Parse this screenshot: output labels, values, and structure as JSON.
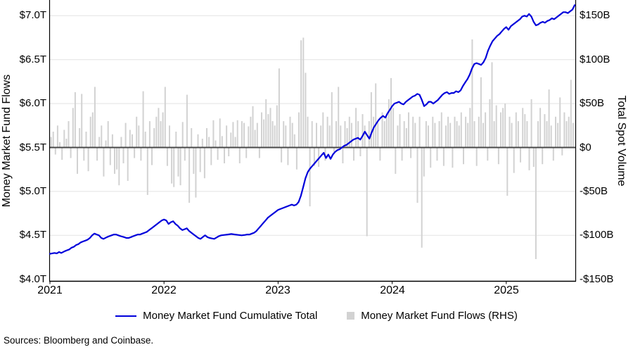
{
  "figure": {
    "left_axis_title": "Money Market Fund Flows",
    "right_axis_title": "Total Spot Volume",
    "legend_line_label": "Money Market Fund Cumulative Total",
    "legend_bar_label": "Money Market Fund Flows (RHS)",
    "sources_note": "Sources: Bloomberg and Coinbase.",
    "colors": {
      "line": "#0000db",
      "bars": "#d2d2d2",
      "zero_line": "#4a4a4a",
      "grid": "#e3e3e3",
      "axis": "#000000"
    }
  },
  "chart_data": {
    "type": "composite",
    "subtypes": [
      "line",
      "bar"
    ],
    "x_axis": {
      "ticks": [
        "2021",
        "2022",
        "2023",
        "2024",
        "2025"
      ],
      "tick_values": [
        2021,
        2022,
        2023,
        2024,
        2025
      ],
      "range": [
        2021.0,
        2025.603
      ],
      "grid": false
    },
    "left_axis": {
      "title": "Money Market Fund Flows",
      "unit": "$T",
      "ticks": [
        "$4.0T",
        "$4.5T",
        "$5.0T",
        "$5.5T",
        "$6.0T",
        "$6.5T",
        "$7.0T"
      ],
      "tick_values": [
        4.0,
        4.5,
        5.0,
        5.5,
        6.0,
        6.5,
        7.0
      ],
      "range": [
        4.0,
        7.2
      ],
      "grid": true
    },
    "right_axis": {
      "title": "Total Spot Volume",
      "unit": "$B",
      "ticks": [
        "-$150B",
        "-$100B",
        "-$50B",
        "$0",
        "$50B",
        "$100B",
        "$150B"
      ],
      "tick_values": [
        -150,
        -100,
        -50,
        0,
        50,
        100,
        150
      ],
      "range": [
        -152,
        152
      ],
      "grid": false
    },
    "series": [
      {
        "name": "Money Market Fund Cumulative Total",
        "type": "line",
        "axis": "left",
        "unit": "$T",
        "color": "#0000db",
        "points": [
          [
            2021.0,
            4.29
          ],
          [
            2021.02,
            4.295
          ],
          [
            2021.04,
            4.3
          ],
          [
            2021.06,
            4.295
          ],
          [
            2021.08,
            4.31
          ],
          [
            2021.1,
            4.3
          ],
          [
            2021.13,
            4.32
          ],
          [
            2021.15,
            4.33
          ],
          [
            2021.17,
            4.34
          ],
          [
            2021.19,
            4.36
          ],
          [
            2021.21,
            4.37
          ],
          [
            2021.23,
            4.39
          ],
          [
            2021.25,
            4.4
          ],
          [
            2021.27,
            4.42
          ],
          [
            2021.29,
            4.43
          ],
          [
            2021.31,
            4.44
          ],
          [
            2021.33,
            4.45
          ],
          [
            2021.35,
            4.47
          ],
          [
            2021.37,
            4.5
          ],
          [
            2021.39,
            4.52
          ],
          [
            2021.41,
            4.51
          ],
          [
            2021.43,
            4.5
          ],
          [
            2021.45,
            4.47
          ],
          [
            2021.47,
            4.46
          ],
          [
            2021.5,
            4.48
          ],
          [
            2021.52,
            4.49
          ],
          [
            2021.54,
            4.5
          ],
          [
            2021.56,
            4.51
          ],
          [
            2021.58,
            4.51
          ],
          [
            2021.6,
            4.5
          ],
          [
            2021.62,
            4.49
          ],
          [
            2021.65,
            4.48
          ],
          [
            2021.67,
            4.47
          ],
          [
            2021.69,
            4.47
          ],
          [
            2021.71,
            4.48
          ],
          [
            2021.73,
            4.49
          ],
          [
            2021.75,
            4.5
          ],
          [
            2021.77,
            4.51
          ],
          [
            2021.79,
            4.51
          ],
          [
            2021.81,
            4.52
          ],
          [
            2021.83,
            4.53
          ],
          [
            2021.85,
            4.54
          ],
          [
            2021.87,
            4.56
          ],
          [
            2021.9,
            4.59
          ],
          [
            2021.92,
            4.61
          ],
          [
            2021.94,
            4.63
          ],
          [
            2021.96,
            4.65
          ],
          [
            2021.98,
            4.67
          ],
          [
            2022.0,
            4.68
          ],
          [
            2022.02,
            4.67
          ],
          [
            2022.04,
            4.63
          ],
          [
            2022.06,
            4.65
          ],
          [
            2022.08,
            4.66
          ],
          [
            2022.1,
            4.63
          ],
          [
            2022.12,
            4.61
          ],
          [
            2022.14,
            4.58
          ],
          [
            2022.16,
            4.56
          ],
          [
            2022.18,
            4.57
          ],
          [
            2022.2,
            4.58
          ],
          [
            2022.22,
            4.55
          ],
          [
            2022.24,
            4.53
          ],
          [
            2022.26,
            4.51
          ],
          [
            2022.28,
            4.49
          ],
          [
            2022.3,
            4.47
          ],
          [
            2022.32,
            4.46
          ],
          [
            2022.34,
            4.48
          ],
          [
            2022.36,
            4.5
          ],
          [
            2022.38,
            4.48
          ],
          [
            2022.4,
            4.47
          ],
          [
            2022.42,
            4.465
          ],
          [
            2022.44,
            4.46
          ],
          [
            2022.46,
            4.475
          ],
          [
            2022.48,
            4.49
          ],
          [
            2022.5,
            4.5
          ],
          [
            2022.53,
            4.505
          ],
          [
            2022.56,
            4.51
          ],
          [
            2022.59,
            4.515
          ],
          [
            2022.62,
            4.51
          ],
          [
            2022.65,
            4.505
          ],
          [
            2022.68,
            4.5
          ],
          [
            2022.71,
            4.505
          ],
          [
            2022.73,
            4.51
          ],
          [
            2022.75,
            4.51
          ],
          [
            2022.77,
            4.52
          ],
          [
            2022.79,
            4.53
          ],
          [
            2022.81,
            4.55
          ],
          [
            2022.83,
            4.58
          ],
          [
            2022.85,
            4.61
          ],
          [
            2022.87,
            4.64
          ],
          [
            2022.89,
            4.67
          ],
          [
            2022.91,
            4.7
          ],
          [
            2022.93,
            4.72
          ],
          [
            2022.95,
            4.74
          ],
          [
            2022.97,
            4.76
          ],
          [
            2023.0,
            4.79
          ],
          [
            2023.02,
            4.8
          ],
          [
            2023.04,
            4.81
          ],
          [
            2023.06,
            4.82
          ],
          [
            2023.08,
            4.83
          ],
          [
            2023.1,
            4.84
          ],
          [
            2023.12,
            4.85
          ],
          [
            2023.14,
            4.84
          ],
          [
            2023.16,
            4.85
          ],
          [
            2023.18,
            4.88
          ],
          [
            2023.2,
            4.95
          ],
          [
            2023.22,
            5.05
          ],
          [
            2023.24,
            5.15
          ],
          [
            2023.26,
            5.22
          ],
          [
            2023.28,
            5.26
          ],
          [
            2023.3,
            5.29
          ],
          [
            2023.32,
            5.32
          ],
          [
            2023.34,
            5.35
          ],
          [
            2023.36,
            5.38
          ],
          [
            2023.38,
            5.41
          ],
          [
            2023.4,
            5.44
          ],
          [
            2023.42,
            5.38
          ],
          [
            2023.44,
            5.42
          ],
          [
            2023.46,
            5.37
          ],
          [
            2023.48,
            5.42
          ],
          [
            2023.5,
            5.45
          ],
          [
            2023.52,
            5.47
          ],
          [
            2023.54,
            5.48
          ],
          [
            2023.56,
            5.5
          ],
          [
            2023.58,
            5.52
          ],
          [
            2023.6,
            5.53
          ],
          [
            2023.62,
            5.55
          ],
          [
            2023.64,
            5.57
          ],
          [
            2023.66,
            5.59
          ],
          [
            2023.68,
            5.6
          ],
          [
            2023.7,
            5.61
          ],
          [
            2023.72,
            5.59
          ],
          [
            2023.74,
            5.63
          ],
          [
            2023.76,
            5.68
          ],
          [
            2023.78,
            5.64
          ],
          [
            2023.8,
            5.6
          ],
          [
            2023.82,
            5.67
          ],
          [
            2023.84,
            5.73
          ],
          [
            2023.86,
            5.77
          ],
          [
            2023.88,
            5.81
          ],
          [
            2023.9,
            5.84
          ],
          [
            2023.92,
            5.86
          ],
          [
            2023.94,
            5.84
          ],
          [
            2023.96,
            5.89
          ],
          [
            2023.98,
            5.93
          ],
          [
            2024.0,
            5.97
          ],
          [
            2024.02,
            6.0
          ],
          [
            2024.04,
            6.01
          ],
          [
            2024.06,
            6.02
          ],
          [
            2024.08,
            6.0
          ],
          [
            2024.1,
            5.99
          ],
          [
            2024.12,
            6.02
          ],
          [
            2024.14,
            6.04
          ],
          [
            2024.16,
            6.06
          ],
          [
            2024.18,
            6.08
          ],
          [
            2024.2,
            6.09
          ],
          [
            2024.22,
            6.11
          ],
          [
            2024.24,
            6.1
          ],
          [
            2024.26,
            6.04
          ],
          [
            2024.28,
            5.97
          ],
          [
            2024.3,
            5.99
          ],
          [
            2024.32,
            6.02
          ],
          [
            2024.34,
            6.02
          ],
          [
            2024.36,
            6.0
          ],
          [
            2024.38,
            6.02
          ],
          [
            2024.4,
            6.04
          ],
          [
            2024.42,
            6.07
          ],
          [
            2024.44,
            6.1
          ],
          [
            2024.46,
            6.12
          ],
          [
            2024.48,
            6.13
          ],
          [
            2024.5,
            6.11
          ],
          [
            2024.52,
            6.12
          ],
          [
            2024.54,
            6.12
          ],
          [
            2024.56,
            6.14
          ],
          [
            2024.58,
            6.13
          ],
          [
            2024.6,
            6.15
          ],
          [
            2024.62,
            6.2
          ],
          [
            2024.64,
            6.24
          ],
          [
            2024.66,
            6.28
          ],
          [
            2024.68,
            6.33
          ],
          [
            2024.7,
            6.4
          ],
          [
            2024.72,
            6.45
          ],
          [
            2024.74,
            6.46
          ],
          [
            2024.76,
            6.45
          ],
          [
            2024.78,
            6.44
          ],
          [
            2024.8,
            6.47
          ],
          [
            2024.82,
            6.52
          ],
          [
            2024.84,
            6.6
          ],
          [
            2024.86,
            6.66
          ],
          [
            2024.88,
            6.71
          ],
          [
            2024.9,
            6.74
          ],
          [
            2024.92,
            6.77
          ],
          [
            2024.94,
            6.79
          ],
          [
            2024.96,
            6.82
          ],
          [
            2024.98,
            6.85
          ],
          [
            2025.0,
            6.87
          ],
          [
            2025.02,
            6.84
          ],
          [
            2025.04,
            6.88
          ],
          [
            2025.06,
            6.9
          ],
          [
            2025.08,
            6.92
          ],
          [
            2025.1,
            6.94
          ],
          [
            2025.12,
            6.96
          ],
          [
            2025.14,
            6.99
          ],
          [
            2025.16,
            7.0
          ],
          [
            2025.18,
            6.99
          ],
          [
            2025.2,
            7.02
          ],
          [
            2025.22,
            6.99
          ],
          [
            2025.24,
            6.93
          ],
          [
            2025.26,
            6.89
          ],
          [
            2025.28,
            6.9
          ],
          [
            2025.3,
            6.92
          ],
          [
            2025.32,
            6.93
          ],
          [
            2025.34,
            6.92
          ],
          [
            2025.36,
            6.94
          ],
          [
            2025.38,
            6.95
          ],
          [
            2025.4,
            6.97
          ],
          [
            2025.42,
            6.96
          ],
          [
            2025.44,
            6.98
          ],
          [
            2025.46,
            7.0
          ],
          [
            2025.48,
            7.02
          ],
          [
            2025.5,
            7.04
          ],
          [
            2025.52,
            7.04
          ],
          [
            2025.54,
            7.03
          ],
          [
            2025.56,
            7.05
          ],
          [
            2025.58,
            7.07
          ],
          [
            2025.6,
            7.12
          ]
        ]
      },
      {
        "name": "Money Market Fund Flows (RHS)",
        "type": "bar",
        "axis": "right",
        "unit": "$B",
        "color": "#d2d2d2",
        "x_start": 2021.0,
        "x_step_years": 0.01923,
        "values": [
          12,
          18,
          -8,
          25,
          6,
          -14,
          20,
          10,
          30,
          -12,
          45,
          63,
          -30,
          22,
          61,
          -15,
          18,
          -27,
          35,
          40,
          69,
          -15,
          12,
          25,
          -33,
          8,
          30,
          -20,
          15,
          -30,
          -25,
          -43,
          12,
          -18,
          28,
          -38,
          20,
          15,
          -12,
          35,
          25,
          -15,
          64,
          18,
          -54,
          30,
          -20,
          22,
          35,
          45,
          30,
          40,
          69,
          -21,
          25,
          -41,
          -45,
          18,
          -33,
          -43,
          29,
          -15,
          60,
          -63,
          22,
          -30,
          -57,
          15,
          -28,
          10,
          -35,
          22,
          12,
          -20,
          31,
          8,
          -14,
          33,
          13,
          -18,
          25,
          -10,
          17,
          29,
          12,
          31,
          -18,
          30,
          28,
          -12,
          24,
          35,
          47,
          20,
          28,
          -12,
          40,
          32,
          55,
          38,
          45,
          30,
          25,
          48,
          90,
          -17,
          30,
          25,
          -20,
          35,
          28,
          15,
          -25,
          40,
          122,
          125,
          85,
          35,
          -67,
          30,
          -21,
          28,
          -22,
          25,
          40,
          -15,
          35,
          25,
          63,
          -5,
          30,
          69,
          25,
          -18,
          30,
          22,
          35,
          28,
          -15,
          45,
          30,
          -10,
          38,
          25,
          -101,
          30,
          63,
          35,
          73,
          28,
          -15,
          40,
          30,
          35,
          55,
          79,
          45,
          -30,
          25,
          38,
          -15,
          30,
          22,
          40,
          -12,
          35,
          28,
          -63,
          35,
          -114,
          -33,
          30,
          25,
          -23,
          35,
          28,
          -15,
          30,
          40,
          -21,
          25,
          35,
          28,
          -23,
          35,
          30,
          25,
          40,
          -19,
          35,
          28,
          45,
          123,
          30,
          -21,
          35,
          80,
          28,
          40,
          -15,
          55,
          97,
          30,
          48,
          -19,
          40,
          45,
          50,
          -55,
          35,
          28,
          -29,
          40,
          30,
          -17,
          45,
          38,
          30,
          -26,
          55,
          -22,
          -127,
          30,
          45,
          -19,
          38,
          30,
          66,
          25,
          -15,
          35,
          28,
          57,
          -9,
          40,
          30,
          35,
          77,
          28
        ]
      }
    ]
  }
}
